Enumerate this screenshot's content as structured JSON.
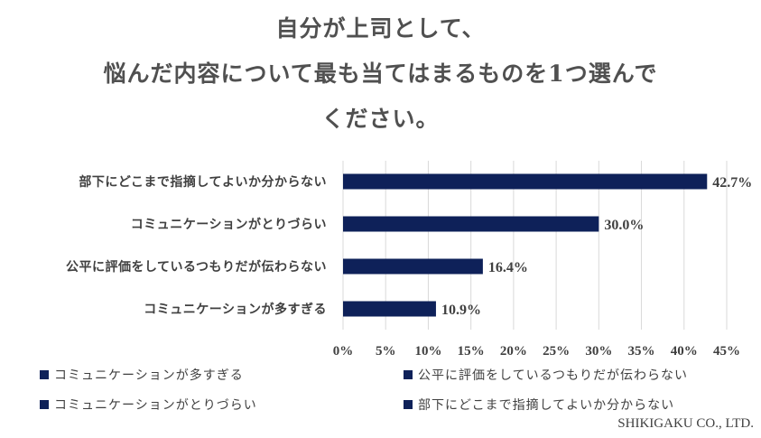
{
  "title_lines": [
    "自分が上司として、",
    "悩んだ内容について最も当てはまるものを1つ選んで",
    "ください。"
  ],
  "chart_data": {
    "type": "bar",
    "orientation": "horizontal",
    "categories": [
      "部下にどこまで指摘してよいか分からない",
      "コミュニケーションがとりづらい",
      "公平に評価をしているつもりだが伝わらない",
      "コミュニケーションが多すぎる"
    ],
    "values": [
      42.7,
      30.0,
      16.4,
      10.9
    ],
    "value_labels": [
      "42.7%",
      "30.0%",
      "16.4%",
      "10.9%"
    ],
    "xlim": [
      0,
      45
    ],
    "x_ticks": [
      "0%",
      "5%",
      "10%",
      "15%",
      "20%",
      "25%",
      "30%",
      "35%",
      "40%",
      "45%"
    ],
    "bar_color": "#0e2159",
    "grid_color": "#d9d9d9",
    "grid": true,
    "legend_position": "bottom",
    "legend": [
      "コミュニケーションが多すぎる",
      "公平に評価をしているつもりだが伝わらない",
      "コミュニケーションがとりづらい",
      "部下にどこまで指摘してよいか分からない"
    ]
  },
  "credit": "SHIKIGAKU CO., LTD."
}
